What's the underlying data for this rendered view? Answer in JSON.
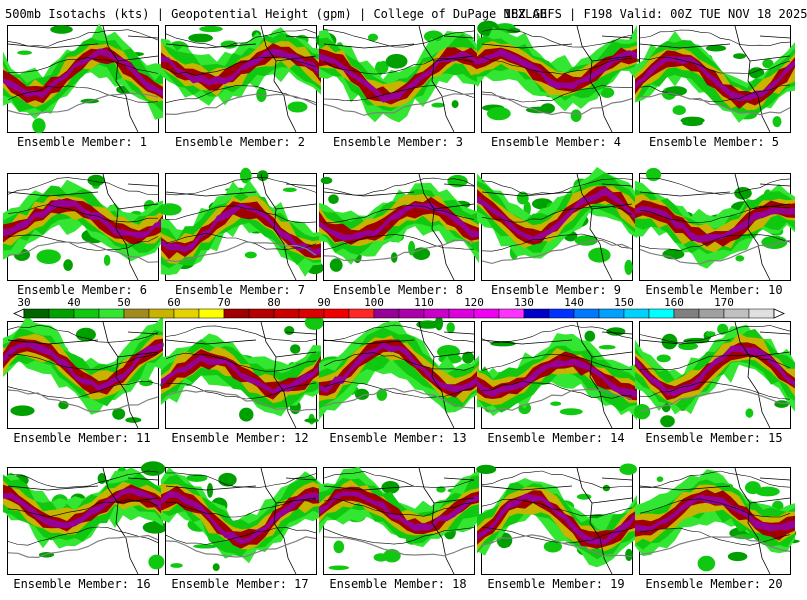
{
  "header": {
    "title_left": "500mb Isotachs (kts) | Geopotential Height (gpm) | College of DuPage NEXLAB",
    "title_right": "18Z GEFS | F198 Valid: 00Z TUE NOV 18 2025"
  },
  "members": [
    {
      "label": "Ensemble Member: 1",
      "number": 1
    },
    {
      "label": "Ensemble Member: 2",
      "number": 2
    },
    {
      "label": "Ensemble Member: 3",
      "number": 3
    },
    {
      "label": "Ensemble Member: 4",
      "number": 4
    },
    {
      "label": "Ensemble Member: 5",
      "number": 5
    },
    {
      "label": "Ensemble Member: 6",
      "number": 6
    },
    {
      "label": "Ensemble Member: 7",
      "number": 7
    },
    {
      "label": "Ensemble Member: 8",
      "number": 8
    },
    {
      "label": "Ensemble Member: 9",
      "number": 9
    },
    {
      "label": "Ensemble Member: 10",
      "number": 10
    },
    {
      "label": "Ensemble Member: 11",
      "number": 11
    },
    {
      "label": "Ensemble Member: 12",
      "number": 12
    },
    {
      "label": "Ensemble Member: 13",
      "number": 13
    },
    {
      "label": "Ensemble Member: 14",
      "number": 14
    },
    {
      "label": "Ensemble Member: 15",
      "number": 15
    },
    {
      "label": "Ensemble Member: 16",
      "number": 16
    },
    {
      "label": "Ensemble Member: 17",
      "number": 17
    },
    {
      "label": "Ensemble Member: 18",
      "number": 18
    },
    {
      "label": "Ensemble Member: 19",
      "number": 19
    },
    {
      "label": "Ensemble Member: 20",
      "number": 20
    }
  ],
  "colorbar": {
    "labels": [
      "30",
      "40",
      "50",
      "60",
      "70",
      "80",
      "90",
      "100",
      "110",
      "120",
      "130",
      "140",
      "150",
      "160",
      "170"
    ],
    "colors": [
      "#006400",
      "#00a000",
      "#10c810",
      "#32e632",
      "#a08c1e",
      "#c8b400",
      "#e6d200",
      "#ffff00",
      "#a00000",
      "#b40000",
      "#c80000",
      "#dc0000",
      "#f00000",
      "#ff2828",
      "#960096",
      "#aa00aa",
      "#c800c8",
      "#dc00dc",
      "#f000f0",
      "#ff32ff",
      "#0000c8",
      "#0032ff",
      "#0078ff",
      "#00a0ff",
      "#00d2ff",
      "#00ffff",
      "#808080",
      "#a0a0a0",
      "#c0c0c0",
      "#e0e0e0"
    ]
  }
}
